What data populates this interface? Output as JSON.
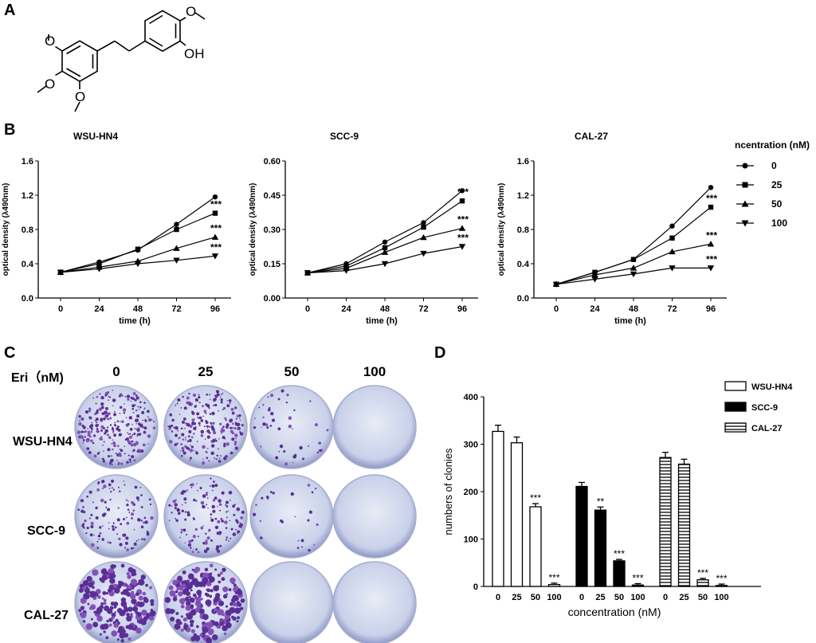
{
  "panel_labels": {
    "a": "A",
    "b": "B",
    "c": "C",
    "d": "D"
  },
  "structure": {
    "oh_label": "OH"
  },
  "panel_b": {
    "legend_title": "ncentration (nM)",
    "legend_items": [
      {
        "label": "0",
        "marker": "circle"
      },
      {
        "label": "25",
        "marker": "square"
      },
      {
        "label": "50",
        "marker": "triangle-up"
      },
      {
        "label": "100",
        "marker": "triangle-down"
      }
    ]
  },
  "panel_c": {
    "treatment_label": "Eri（nM)",
    "doses": [
      "0",
      "25",
      "50",
      "100"
    ],
    "cell_lines": [
      "WSU-HN4",
      "SCC-9",
      "CAL-27"
    ],
    "dish_colonies": [
      [
        260,
        230,
        45,
        0
      ],
      [
        120,
        140,
        25,
        0
      ],
      [
        190,
        210,
        0,
        0
      ]
    ]
  },
  "chart_data": [
    {
      "type": "line",
      "title": "WSU-HN4",
      "xlabel": "time (h)",
      "ylabel": "optical density (λ490nm)",
      "x": [
        0,
        24,
        48,
        72,
        96
      ],
      "xticks": [
        "0",
        "24",
        "48",
        "72",
        "96"
      ],
      "ylim": [
        0,
        1.6
      ],
      "yticks": [
        "0.0",
        "0.4",
        "0.8",
        "1.2",
        "1.6"
      ],
      "series": [
        {
          "name": "0",
          "marker": "circle",
          "values": [
            0.3,
            0.42,
            0.56,
            0.86,
            1.18
          ]
        },
        {
          "name": "25",
          "marker": "square",
          "values": [
            0.3,
            0.4,
            0.57,
            0.8,
            0.99
          ]
        },
        {
          "name": "50",
          "marker": "triangle-up",
          "values": [
            0.3,
            0.36,
            0.43,
            0.58,
            0.71
          ]
        },
        {
          "name": "100",
          "marker": "triangle-down",
          "values": [
            0.3,
            0.34,
            0.4,
            0.44,
            0.49
          ]
        }
      ],
      "annotations": [
        "***",
        "***",
        "***"
      ]
    },
    {
      "type": "line",
      "title": "SCC-9",
      "xlabel": "time (h)",
      "ylabel": "optical density (λ490nm)",
      "x": [
        0,
        24,
        48,
        72,
        96
      ],
      "xticks": [
        "0",
        "24",
        "48",
        "72",
        "96"
      ],
      "ylim": [
        0,
        0.6
      ],
      "yticks": [
        "0.00",
        "0.15",
        "0.30",
        "0.45",
        "0.60"
      ],
      "series": [
        {
          "name": "0",
          "marker": "circle",
          "values": [
            0.11,
            0.15,
            0.245,
            0.33,
            0.47
          ]
        },
        {
          "name": "25",
          "marker": "square",
          "values": [
            0.11,
            0.14,
            0.22,
            0.31,
            0.425
          ]
        },
        {
          "name": "50",
          "marker": "triangle-up",
          "values": [
            0.11,
            0.13,
            0.2,
            0.265,
            0.305
          ]
        },
        {
          "name": "100",
          "marker": "triangle-down",
          "values": [
            0.11,
            0.12,
            0.15,
            0.195,
            0.225
          ]
        }
      ],
      "annotations": [
        "***",
        "***",
        "***"
      ]
    },
    {
      "type": "line",
      "title": "CAL-27",
      "xlabel": "time (h)",
      "ylabel": "optical density (λ490nm)",
      "x": [
        0,
        24,
        48,
        72,
        96
      ],
      "xticks": [
        "0",
        "24",
        "48",
        "72",
        "96"
      ],
      "ylim": [
        0,
        1.6
      ],
      "yticks": [
        "0.0",
        "0.4",
        "0.8",
        "1.2",
        "1.6"
      ],
      "series": [
        {
          "name": "0",
          "marker": "circle",
          "values": [
            0.16,
            0.3,
            0.45,
            0.84,
            1.29
          ]
        },
        {
          "name": "25",
          "marker": "square",
          "values": [
            0.16,
            0.3,
            0.45,
            0.7,
            1.06
          ]
        },
        {
          "name": "50",
          "marker": "triangle-up",
          "values": [
            0.16,
            0.27,
            0.35,
            0.54,
            0.63
          ]
        },
        {
          "name": "100",
          "marker": "triangle-down",
          "values": [
            0.16,
            0.22,
            0.28,
            0.35,
            0.35
          ]
        }
      ],
      "annotations": [
        "***",
        "***",
        "***"
      ]
    },
    {
      "type": "bar",
      "title": "",
      "xlabel": "concentration (nM)",
      "ylabel": "numbers of clonies",
      "ylim": [
        0,
        400
      ],
      "yticks": [
        "0",
        "100",
        "200",
        "300",
        "400"
      ],
      "categories": [
        "0",
        "25",
        "50",
        "100"
      ],
      "legend_position": "top-right",
      "series": [
        {
          "name": "WSU-HN4",
          "fill": "open",
          "values": [
            327,
            303,
            168,
            4
          ],
          "sig": [
            "",
            "",
            "***",
            "***"
          ]
        },
        {
          "name": "SCC-9",
          "fill": "solid",
          "values": [
            211,
            161,
            54,
            3
          ],
          "sig": [
            "",
            "**",
            "***",
            "***"
          ]
        },
        {
          "name": "CAL-27",
          "fill": "horizontal-stripes",
          "values": [
            272,
            258,
            14,
            2
          ],
          "sig": [
            "",
            "",
            "***",
            "***"
          ]
        }
      ]
    }
  ]
}
